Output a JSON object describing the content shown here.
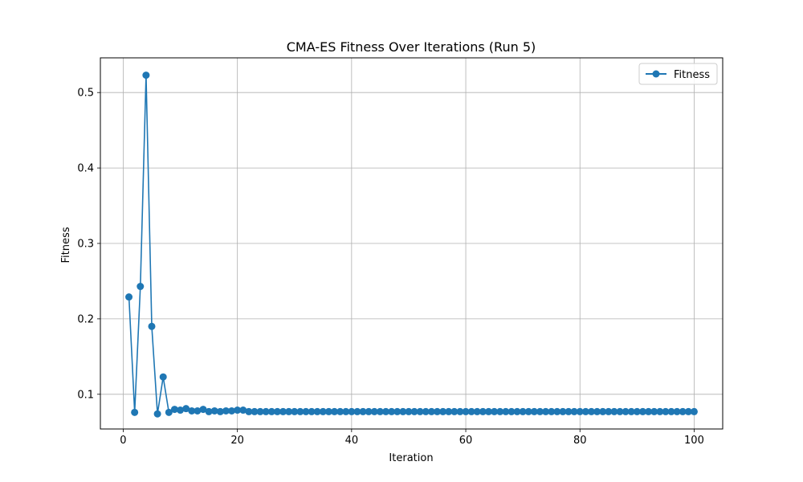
{
  "chart_data": {
    "type": "line",
    "title": "CMA-ES Fitness Over Iterations (Run 5)",
    "xlabel": "Iteration",
    "ylabel": "Fitness",
    "xlim": [
      -4,
      105
    ],
    "ylim": [
      0.054,
      0.546
    ],
    "xticks": [
      0,
      20,
      40,
      60,
      80,
      100
    ],
    "yticks": [
      0.1,
      0.2,
      0.3,
      0.4,
      0.5
    ],
    "xtick_labels": [
      "0",
      "20",
      "40",
      "60",
      "80",
      "100"
    ],
    "ytick_labels": [
      "0.1",
      "0.2",
      "0.3",
      "0.4",
      "0.5"
    ],
    "grid": true,
    "legend_position": "upper right",
    "series": [
      {
        "name": "Fitness",
        "color": "#1f77b4",
        "marker": "circle",
        "x": [
          1,
          2,
          3,
          4,
          5,
          6,
          7,
          8,
          9,
          10,
          11,
          12,
          13,
          14,
          15,
          16,
          17,
          18,
          19,
          20,
          21,
          22,
          23,
          24,
          25,
          26,
          27,
          28,
          29,
          30,
          31,
          32,
          33,
          34,
          35,
          36,
          37,
          38,
          39,
          40,
          41,
          42,
          43,
          44,
          45,
          46,
          47,
          48,
          49,
          50,
          51,
          52,
          53,
          54,
          55,
          56,
          57,
          58,
          59,
          60,
          61,
          62,
          63,
          64,
          65,
          66,
          67,
          68,
          69,
          70,
          71,
          72,
          73,
          74,
          75,
          76,
          77,
          78,
          79,
          80,
          81,
          82,
          83,
          84,
          85,
          86,
          87,
          88,
          89,
          90,
          91,
          92,
          93,
          94,
          95,
          96,
          97,
          98,
          99,
          100
        ],
        "values": [
          0.229,
          0.076,
          0.243,
          0.523,
          0.19,
          0.074,
          0.123,
          0.076,
          0.08,
          0.079,
          0.081,
          0.078,
          0.078,
          0.08,
          0.077,
          0.078,
          0.077,
          0.078,
          0.078,
          0.079,
          0.079,
          0.077,
          0.077,
          0.077,
          0.077,
          0.077,
          0.077,
          0.077,
          0.077,
          0.077,
          0.077,
          0.077,
          0.077,
          0.077,
          0.077,
          0.077,
          0.077,
          0.077,
          0.077,
          0.077,
          0.077,
          0.077,
          0.077,
          0.077,
          0.077,
          0.077,
          0.077,
          0.077,
          0.077,
          0.077,
          0.077,
          0.077,
          0.077,
          0.077,
          0.077,
          0.077,
          0.077,
          0.077,
          0.077,
          0.077,
          0.077,
          0.077,
          0.077,
          0.077,
          0.077,
          0.077,
          0.077,
          0.077,
          0.077,
          0.077,
          0.077,
          0.077,
          0.077,
          0.077,
          0.077,
          0.077,
          0.077,
          0.077,
          0.077,
          0.077,
          0.077,
          0.077,
          0.077,
          0.077,
          0.077,
          0.077,
          0.077,
          0.077,
          0.077,
          0.077,
          0.077,
          0.077,
          0.077,
          0.077,
          0.077,
          0.077,
          0.077,
          0.077,
          0.077,
          0.077
        ]
      }
    ]
  }
}
